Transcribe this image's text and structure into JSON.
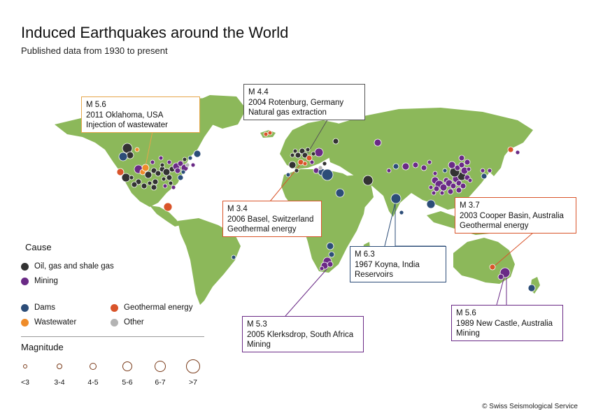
{
  "title": "Induced Earthquakes around the World",
  "subtitle": "Published data from 1930 to present",
  "copyright": "© Swiss Seismological Service",
  "colors": {
    "land": "#8cb85a",
    "ocean": "#ffffff",
    "oil_gas_shale": "#333333",
    "mining": "#6a2a86",
    "dams": "#2c4d78",
    "geothermal": "#d9542a",
    "wastewater": "#ef8c2a",
    "other": "#b3b3b3"
  },
  "callouts": [
    {
      "magnitude": "M 5.6",
      "event": "2011 Oklahoma, USA",
      "cause": "Injection of wastewater",
      "color": "#e6a64a"
    },
    {
      "magnitude": "M 4.4",
      "event": "2004 Rotenburg, Germany",
      "cause": "Natural gas extraction",
      "color": "#555555"
    },
    {
      "magnitude": "M 3.4",
      "event": "2006 Basel, Switzerland",
      "cause": "Geothermal energy",
      "color": "#d9542a"
    },
    {
      "magnitude": "M 6.3",
      "event": "1967 Koyna, India",
      "cause": "Reservoirs",
      "color": "#2c4d78"
    },
    {
      "magnitude": "M 3.7",
      "event": "2003 Cooper Basin, Australia",
      "cause": "Geothermal energy",
      "color": "#d9542a"
    },
    {
      "magnitude": "M 5.3",
      "event": "2005 Klerksdrop, South Africa",
      "cause": "Mining",
      "color": "#6a2a86"
    },
    {
      "magnitude": "M 5.6",
      "event": "1989 New Castle, Australia",
      "cause": "Mining",
      "color": "#6a2a86"
    }
  ],
  "legend": {
    "cause_title": "Cause",
    "causes": [
      {
        "label": "Oil, gas and shale gas",
        "color": "#333333"
      },
      {
        "label": "Mining",
        "color": "#6a2a86"
      },
      {
        "label": "Dams",
        "color": "#2c4d78"
      },
      {
        "label": "Geothermal energy",
        "color": "#d9542a"
      },
      {
        "label": "Wastewater",
        "color": "#ef8c2a"
      },
      {
        "label": "Other",
        "color": "#b3b3b3"
      }
    ],
    "magnitude_title": "Magnitude",
    "magnitudes": [
      "<3",
      "3-4",
      "4-5",
      "5-6",
      "6-7",
      ">7"
    ]
  }
}
